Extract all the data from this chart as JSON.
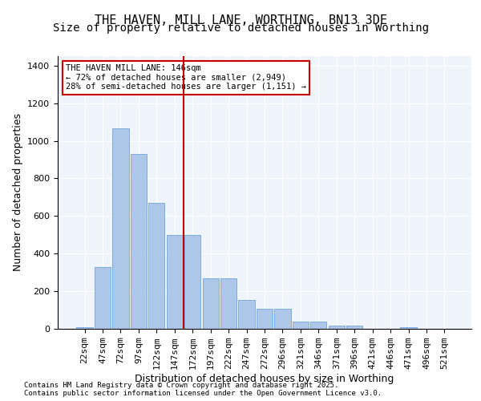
{
  "title1": "THE HAVEN, MILL LANE, WORTHING, BN13 3DE",
  "title2": "Size of property relative to detached houses in Worthing",
  "xlabel": "Distribution of detached houses by size in Worthing",
  "ylabel": "Number of detached properties",
  "categories": [
    "22sqm",
    "47sqm",
    "72sqm",
    "97sqm",
    "122sqm",
    "147sqm",
    "172sqm",
    "197sqm",
    "222sqm",
    "247sqm",
    "272sqm",
    "296sqm",
    "321sqm",
    "346sqm",
    "371sqm",
    "396sqm",
    "421sqm",
    "446sqm",
    "471sqm",
    "496sqm",
    "521sqm"
  ],
  "values": [
    10,
    330,
    1065,
    930,
    670,
    500,
    500,
    270,
    270,
    155,
    105,
    105,
    40,
    40,
    15,
    15,
    0,
    0,
    10,
    0,
    0
  ],
  "bar_color": "#aec6e8",
  "bar_edgecolor": "#5b9bd5",
  "vline_x": 5.5,
  "vline_color": "#cc0000",
  "annotation_text": "THE HAVEN MILL LANE: 146sqm\n← 72% of detached houses are smaller (2,949)\n28% of semi-detached houses are larger (1,151) →",
  "annotation_box_color": "#cc0000",
  "background_color": "#f0f4fb",
  "ylim": [
    0,
    1450
  ],
  "yticks": [
    0,
    200,
    400,
    600,
    800,
    1000,
    1200,
    1400
  ],
  "footer": "Contains HM Land Registry data © Crown copyright and database right 2025.\nContains public sector information licensed under the Open Government Licence v3.0.",
  "title_fontsize": 11,
  "subtitle_fontsize": 10,
  "axis_fontsize": 9,
  "tick_fontsize": 8
}
